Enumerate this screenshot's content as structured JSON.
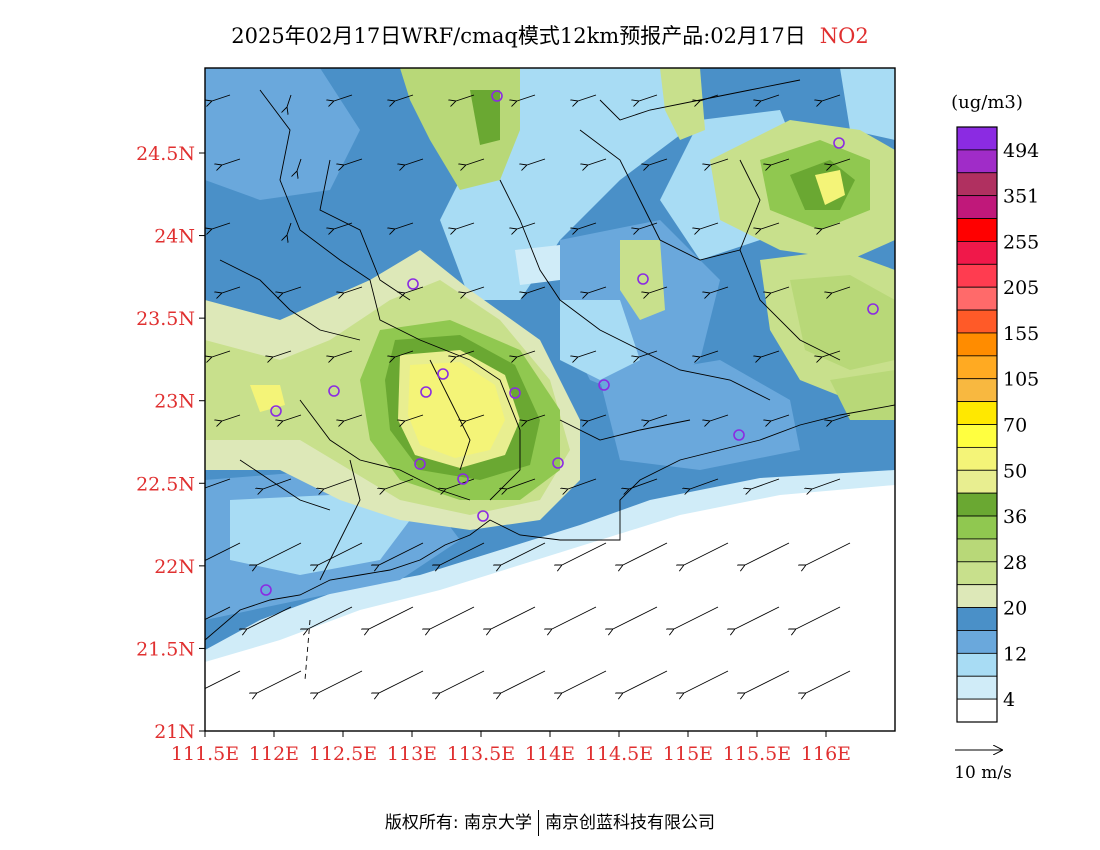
{
  "title": {
    "main": "2025年02月17日WRF/cmaq模式12km预报产品:02月17日",
    "species": "NO2"
  },
  "map": {
    "lat_labels": [
      "24.5N",
      "24N",
      "23.5N",
      "23N",
      "22.5N",
      "22N",
      "21.5N",
      "21N"
    ],
    "lon_labels": [
      "111.5E",
      "112E",
      "112.5E",
      "113E",
      "113.5E",
      "114E",
      "114.5E",
      "115E",
      "115.5E",
      "116E"
    ],
    "lat_range": [
      21,
      25
    ],
    "lon_range": [
      111.5,
      116.5
    ],
    "axis_label_color": "#e03030"
  },
  "colorbar": {
    "unit": "(ug/m3)",
    "labels": [
      "494",
      "351",
      "255",
      "205",
      "155",
      "105",
      "70",
      "50",
      "36",
      "28",
      "20",
      "12",
      "4"
    ],
    "colors_top_to_bottom": [
      "#8b2be2",
      "#a02cc8",
      "#b03060",
      "#c0187a",
      "#ff0000",
      "#f0184a",
      "#ff3c50",
      "#ff6a6a",
      "#ff5a28",
      "#ff8c00",
      "#ffaa22",
      "#f8b840",
      "#ffe800",
      "#ffff40",
      "#f4f478",
      "#e8ee90",
      "#6aa832",
      "#90c850",
      "#b8d878",
      "#c8e08c",
      "#dde8b8",
      "#4a90c8",
      "#6aa8dc",
      "#a8dcf4",
      "#d0ecf8",
      "#ffffff"
    ]
  },
  "wind_legend": {
    "label": "10 m/s"
  },
  "stations_count": 17,
  "footer": {
    "left": "版权所有: 南京大学",
    "right": "南京创蓝科技有限公司"
  }
}
